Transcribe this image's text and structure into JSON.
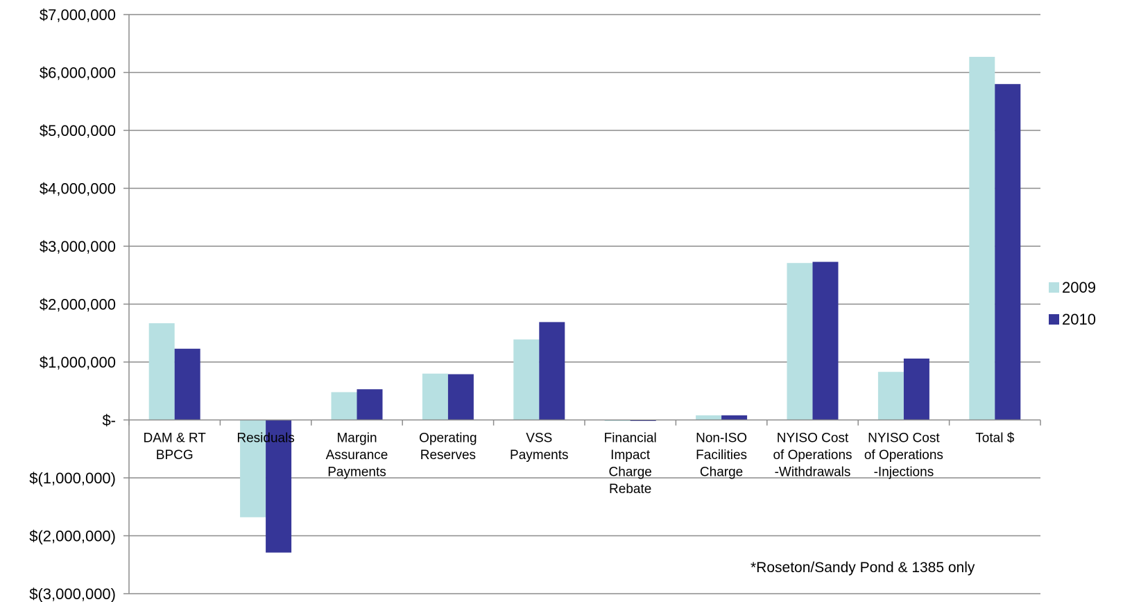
{
  "chart_data": {
    "type": "bar",
    "title": "",
    "xlabel": "",
    "ylabel": "",
    "ylim": [
      -3000000,
      7000000
    ],
    "yticks": [
      {
        "value": 7000000,
        "label": "$7,000,000"
      },
      {
        "value": 6000000,
        "label": "$6,000,000"
      },
      {
        "value": 5000000,
        "label": "$5,000,000"
      },
      {
        "value": 4000000,
        "label": "$4,000,000"
      },
      {
        "value": 3000000,
        "label": "$3,000,000"
      },
      {
        "value": 2000000,
        "label": "$2,000,000"
      },
      {
        "value": 1000000,
        "label": "$1,000,000"
      },
      {
        "value": 0,
        "label": "$-"
      },
      {
        "value": -1000000,
        "label": "$(1,000,000)"
      },
      {
        "value": -2000000,
        "label": "$(2,000,000)"
      },
      {
        "value": -3000000,
        "label": "$(3,000,000)"
      }
    ],
    "grid": true,
    "legend_position": "right",
    "categories": [
      [
        "DAM & RT",
        "BPCG"
      ],
      [
        "Residuals"
      ],
      [
        "Margin",
        "Assurance",
        "Payments"
      ],
      [
        "Operating",
        "Reserves"
      ],
      [
        "VSS",
        "Payments"
      ],
      [
        "Financial",
        "Impact",
        "Charge",
        "Rebate"
      ],
      [
        "Non-ISO",
        "Facilities",
        "Charge"
      ],
      [
        "NYISO Cost",
        "of Operations",
        "-Withdrawals"
      ],
      [
        "NYISO Cost",
        "of Operations",
        "-Injections"
      ],
      [
        "Total $"
      ]
    ],
    "series": [
      {
        "name": "2009",
        "color": "#b7e0e2",
        "values": [
          1670000,
          -1680000,
          480000,
          800000,
          1390000,
          -5000,
          80000,
          2710000,
          830000,
          6270000
        ]
      },
      {
        "name": "2010",
        "color": "#363698",
        "values": [
          1230000,
          -2290000,
          530000,
          790000,
          1690000,
          -15000,
          80000,
          2730000,
          1060000,
          5800000
        ]
      }
    ],
    "annotation": "*Roseton/Sandy Pond & 1385 only"
  }
}
